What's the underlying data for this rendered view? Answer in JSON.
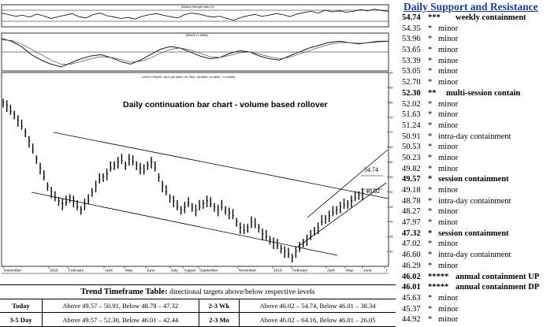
{
  "chart_data": [
    {
      "type": "line",
      "panel": "rsi",
      "title": "Relative Strength Index (9)",
      "ylim": [
        0,
        100
      ],
      "reference_lines": [
        25,
        75
      ],
      "series": [
        {
          "values": [
            62,
            55,
            48,
            52,
            44,
            58,
            49,
            38,
            45,
            52,
            60,
            46,
            40,
            55,
            62,
            50,
            44,
            38,
            42,
            35,
            48,
            55,
            60,
            52,
            46,
            40,
            55,
            62,
            58,
            50,
            44,
            48,
            38,
            30,
            42,
            50,
            56,
            48,
            52,
            60,
            55,
            46,
            58,
            65,
            70,
            62,
            75,
            68,
            72,
            66,
            70,
            78,
            72,
            80,
            74,
            70
          ]
        }
      ]
    },
    {
      "type": "line",
      "panel": "macd",
      "title": "MACD (7.9608)",
      "series": [
        {
          "values": [
            1.0,
            0.8,
            0.4,
            -0.2,
            -0.6,
            -0.9,
            -1.1,
            -0.8,
            -0.5,
            -0.3,
            -0.2,
            -0.4,
            -0.7,
            -0.9,
            -0.6,
            -0.2,
            0.2,
            0.4,
            0.3,
            0.0,
            -0.3,
            -0.5,
            -0.4,
            -0.1,
            0.1,
            0.0,
            -0.3,
            -0.5,
            -0.6,
            -0.3,
            0.0,
            0.3,
            0.5,
            0.7,
            0.8,
            0.7,
            0.6,
            0.7,
            0.8,
            0.8
          ]
        },
        {
          "values": [
            0.9,
            0.85,
            0.6,
            0.2,
            -0.2,
            -0.6,
            -0.9,
            -0.9,
            -0.7,
            -0.5,
            -0.35,
            -0.4,
            -0.55,
            -0.75,
            -0.7,
            -0.45,
            -0.1,
            0.2,
            0.3,
            0.15,
            -0.1,
            -0.35,
            -0.4,
            -0.25,
            -0.05,
            0.0,
            -0.15,
            -0.35,
            -0.5,
            -0.4,
            -0.15,
            0.1,
            0.35,
            0.55,
            0.7,
            0.7,
            0.65,
            0.68,
            0.74,
            0.78
          ]
        }
      ]
    },
    {
      "type": "line",
      "panel": "price",
      "title": "Daily continuation bar chart - volume based rollover",
      "legend_text": "LIGHT CRUDE JUL6",
      "x_tick_labels": [
        "November",
        "2015",
        "February",
        "April",
        "May",
        "June",
        "July",
        "August",
        "September",
        "November",
        "2016",
        "February",
        "April",
        "May",
        "June",
        "J"
      ],
      "y_tick_labels": [
        "90",
        "85",
        "80",
        "75",
        "70",
        "65",
        "60",
        "55",
        "50",
        "45",
        "40",
        "35",
        "30"
      ],
      "ylim": [
        25,
        90
      ],
      "price_labels": [
        "54.74",
        "46.02"
      ],
      "series": [
        {
          "values": [
            80,
            79,
            77,
            76,
            74,
            72,
            70,
            67,
            64,
            61,
            58,
            55,
            52,
            50,
            48,
            47,
            46,
            46.5,
            48,
            47,
            45,
            44,
            46,
            47,
            50,
            52,
            54,
            55,
            56,
            58,
            59,
            60,
            60.5,
            59,
            61,
            60,
            59,
            58,
            57,
            59,
            60,
            58,
            55,
            52,
            50,
            48,
            47,
            45,
            44,
            45,
            46,
            45,
            44,
            45,
            46,
            47,
            46,
            45,
            44,
            45,
            44,
            43,
            42,
            40,
            38,
            37,
            38,
            40,
            39,
            38,
            36,
            35,
            34,
            33,
            32,
            31,
            30,
            29,
            28,
            30,
            31,
            33,
            34,
            35,
            37,
            38,
            40,
            41,
            42,
            43,
            44,
            45,
            45.5,
            46,
            47,
            48,
            49,
            49.5
          ]
        }
      ]
    }
  ],
  "trend_table": {
    "title": "Trend Timeframe Table:",
    "subtitle": "directional targets above/below respective levels",
    "rows": [
      {
        "label1": "Today",
        "val1": "Above 49.57 – 50.91, Below 48.78 – 47.32",
        "label2": "2-3 Wk",
        "val2": "Above 46.02 – 54.74, Below 46.01 – 38.34"
      },
      {
        "label1": "3-5 Day",
        "val1": "Above 49.57 – 52.30, Below 46.01 – 42.44",
        "label2": "2-3 Mo",
        "val2": "Above 46.02 – 64.16, Below 46.01 – 26.05"
      }
    ]
  },
  "support_resistance": {
    "title": "Daily Support and Resistance",
    "levels": [
      {
        "value": "54.74",
        "stars": "***",
        "desc": "weekly containment",
        "major": true,
        "width": "xwide"
      },
      {
        "value": "54.35",
        "stars": "*",
        "desc": "minor"
      },
      {
        "value": "53.96",
        "stars": "*",
        "desc": "minor"
      },
      {
        "value": "53.65",
        "stars": "*",
        "desc": "minor"
      },
      {
        "value": "53.39",
        "stars": "*",
        "desc": "minor"
      },
      {
        "value": "53.05",
        "stars": "*",
        "desc": "minor"
      },
      {
        "value": "52.70",
        "stars": "*",
        "desc": "minor"
      },
      {
        "value": "52.30",
        "stars": "**",
        "desc": "multi-session contain",
        "major": true,
        "width": "wide"
      },
      {
        "value": "52.02",
        "stars": "*",
        "desc": "minor"
      },
      {
        "value": "51.63",
        "stars": "*",
        "desc": "minor"
      },
      {
        "value": "51.24",
        "stars": "*",
        "desc": "minor"
      },
      {
        "value": "50.91",
        "stars": "*",
        "desc": "intra-day containment"
      },
      {
        "value": "50.53",
        "stars": "*",
        "desc": "minor"
      },
      {
        "value": "50.23",
        "stars": "*",
        "desc": "minor"
      },
      {
        "value": "49.82",
        "stars": "*",
        "desc": "minor"
      },
      {
        "value": "49.57",
        "stars": "*",
        "desc": "session containment",
        "major": true
      },
      {
        "value": "49.18",
        "stars": "*",
        "desc": "minor"
      },
      {
        "value": "48.78",
        "stars": "*",
        "desc": "intra-day containment"
      },
      {
        "value": "48.27",
        "stars": "*",
        "desc": "minor"
      },
      {
        "value": "47.97",
        "stars": "*",
        "desc": "minor"
      },
      {
        "value": "47.32",
        "stars": "*",
        "desc": "session containment",
        "major": true
      },
      {
        "value": "47.02",
        "stars": "*",
        "desc": "minor"
      },
      {
        "value": "46.60",
        "stars": "*",
        "desc": "intra-day containment"
      },
      {
        "value": "46.29",
        "stars": "*",
        "desc": "minor"
      },
      {
        "value": "46.02",
        "stars": "*****",
        "desc": "annual containment UP",
        "major": true,
        "width": "xwide"
      },
      {
        "value": "46.01",
        "stars": "*****",
        "desc": "annual containment DP",
        "major": true,
        "width": "xwide"
      },
      {
        "value": "45.63",
        "stars": "*",
        "desc": "minor"
      },
      {
        "value": "45.37",
        "stars": "*",
        "desc": "minor"
      },
      {
        "value": "44.92",
        "stars": "*",
        "desc": "minor"
      }
    ]
  }
}
